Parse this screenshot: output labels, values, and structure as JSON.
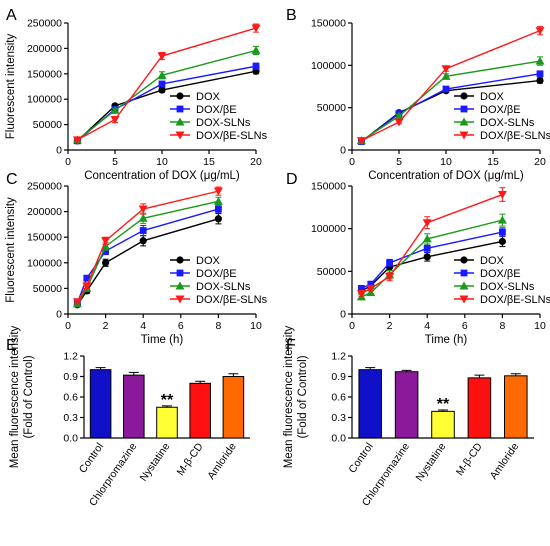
{
  "series_styles": [
    {
      "color": "#000000",
      "marker": "circle"
    },
    {
      "color": "#1a1aff",
      "marker": "square"
    },
    {
      "color": "#1a9a1a",
      "marker": "triangle-up"
    },
    {
      "color": "#ff1a1a",
      "marker": "triangle-down"
    }
  ],
  "chart_data": [
    {
      "panel": "A",
      "type": "line",
      "xlabel": "Concentration of DOX (μg/mL)",
      "ylabel": "Fluorescent intensity",
      "xlim": [
        0,
        20
      ],
      "xticks": [
        0,
        5,
        10,
        15,
        20
      ],
      "ylim": [
        0,
        250000
      ],
      "yticks": [
        0,
        50000,
        100000,
        150000,
        200000,
        250000
      ],
      "x": [
        1,
        5,
        10,
        20
      ],
      "legend_position": "bottom-right",
      "series": [
        {
          "name": "DOX",
          "values": [
            18000,
            87000,
            118000,
            155000
          ],
          "errors": [
            2000,
            3000,
            4000,
            5000
          ]
        },
        {
          "name": "DOX/βE",
          "values": [
            18000,
            80000,
            130000,
            165000
          ],
          "errors": [
            2000,
            3000,
            5000,
            6000
          ]
        },
        {
          "name": "DOX-SLNs",
          "values": [
            20000,
            78000,
            147000,
            196000
          ],
          "errors": [
            2000,
            4000,
            7000,
            8000
          ]
        },
        {
          "name": "DOX/βE-SLNs",
          "values": [
            20000,
            60000,
            185000,
            240000
          ],
          "errors": [
            2000,
            6000,
            7000,
            8000
          ]
        }
      ]
    },
    {
      "panel": "B",
      "type": "line",
      "xlabel": "Concentration of DOX (μg/mL)",
      "ylabel": "",
      "xlim": [
        0,
        20
      ],
      "xticks": [
        0,
        5,
        10,
        15,
        20
      ],
      "ylim": [
        0,
        150000
      ],
      "yticks": [
        0,
        50000,
        100000,
        150000
      ],
      "x": [
        1,
        5,
        10,
        20
      ],
      "legend_position": "bottom-right",
      "series": [
        {
          "name": "DOX",
          "values": [
            10000,
            44000,
            70000,
            82000
          ],
          "errors": [
            1000,
            2000,
            2000,
            3000
          ]
        },
        {
          "name": "DOX/βE",
          "values": [
            10000,
            43000,
            72000,
            90000
          ],
          "errors": [
            1000,
            2000,
            2000,
            3000
          ]
        },
        {
          "name": "DOX-SLNs",
          "values": [
            11000,
            40000,
            87000,
            105000
          ],
          "errors": [
            1000,
            2000,
            3000,
            5000
          ]
        },
        {
          "name": "DOX/βE-SLNs",
          "values": [
            11000,
            33000,
            96000,
            141000
          ],
          "errors": [
            1000,
            2000,
            3000,
            5000
          ]
        }
      ]
    },
    {
      "panel": "C",
      "type": "line",
      "xlabel": "Time (h)",
      "ylabel": "Fluorescent intensity",
      "xlim": [
        0,
        10
      ],
      "xticks": [
        0,
        2,
        4,
        6,
        8,
        10
      ],
      "ylim": [
        0,
        250000
      ],
      "yticks": [
        0,
        50000,
        100000,
        150000,
        200000,
        250000
      ],
      "x": [
        0.5,
        1,
        2,
        4,
        8
      ],
      "legend_position": "bottom-right",
      "series": [
        {
          "name": "DOX",
          "values": [
            18000,
            45000,
            100000,
            143000,
            186000
          ],
          "errors": [
            3000,
            5000,
            7000,
            10000,
            10000
          ]
        },
        {
          "name": "DOX/βE",
          "values": [
            22000,
            70000,
            123000,
            163000,
            205000
          ],
          "errors": [
            3000,
            5000,
            7000,
            10000,
            8000
          ]
        },
        {
          "name": "DOX-SLNs",
          "values": [
            20000,
            50000,
            132000,
            187000,
            220000
          ],
          "errors": [
            3000,
            5000,
            7000,
            10000,
            8000
          ]
        },
        {
          "name": "DOX/βE-SLNs",
          "values": [
            24000,
            55000,
            143000,
            205000,
            240000
          ],
          "errors": [
            3000,
            5000,
            7000,
            10000,
            8000
          ]
        }
      ]
    },
    {
      "panel": "D",
      "type": "line",
      "xlabel": "Time (h)",
      "ylabel": "",
      "xlim": [
        0,
        10
      ],
      "xticks": [
        0,
        2,
        4,
        6,
        8,
        10
      ],
      "ylim": [
        0,
        150000
      ],
      "yticks": [
        0,
        50000,
        100000,
        150000
      ],
      "x": [
        0.5,
        1,
        2,
        4,
        8
      ],
      "legend_position": "bottom-right",
      "series": [
        {
          "name": "DOX",
          "values": [
            27000,
            33000,
            55000,
            67000,
            85000
          ],
          "errors": [
            3000,
            3000,
            4000,
            5000,
            6000
          ]
        },
        {
          "name": "DOX/βE",
          "values": [
            30000,
            35000,
            60000,
            77000,
            96000
          ],
          "errors": [
            3000,
            3000,
            4000,
            5000,
            5000
          ]
        },
        {
          "name": "DOX-SLNs",
          "values": [
            20000,
            25000,
            46000,
            88000,
            110000
          ],
          "errors": [
            3000,
            3000,
            5000,
            6000,
            7000
          ]
        },
        {
          "name": "DOX/βE-SLNs",
          "values": [
            24000,
            30000,
            44000,
            107000,
            140000
          ],
          "errors": [
            3000,
            3000,
            5000,
            7000,
            8000
          ]
        }
      ]
    },
    {
      "panel": "E",
      "type": "bar",
      "ylabel": "Mean fluorescence intensity (Fold of Control)",
      "ylabel_lines": [
        "Mean fluorescence intensity",
        "(Fold of Control)"
      ],
      "ylim": [
        0,
        1.2
      ],
      "yticks": [
        0.0,
        0.3,
        0.6,
        0.9,
        1.2
      ],
      "ytick_labels": [
        "0.0",
        "0.3",
        "0.6",
        "0.9",
        "1.2"
      ],
      "categories": [
        "Control",
        "Chlorpromazine",
        "Nystatine",
        "M-β-CD",
        "Amloride"
      ],
      "values": [
        1.0,
        0.92,
        0.45,
        0.8,
        0.9
      ],
      "errors": [
        0.03,
        0.04,
        0.02,
        0.03,
        0.04
      ],
      "colors": [
        "#1010c8",
        "#8a1a9a",
        "#ffff33",
        "#ff1010",
        "#ff6a00"
      ],
      "annotations": [
        {
          "category": "Nystatine",
          "text": "**"
        }
      ]
    },
    {
      "panel": "F",
      "type": "bar",
      "ylabel": "Mean fluorescence intensity (Fold of Control)",
      "ylabel_lines": [
        "Mean fluorescence intensity",
        "(Fold of Control)"
      ],
      "ylim": [
        0,
        1.2
      ],
      "yticks": [
        0.0,
        0.3,
        0.6,
        0.9,
        1.2
      ],
      "ytick_labels": [
        "0.0",
        "0.3",
        "0.6",
        "0.9",
        "1.2"
      ],
      "categories": [
        "Control",
        "Chlorpromazine",
        "Nystatine",
        "M-β-CD",
        "Amloride"
      ],
      "values": [
        1.0,
        0.97,
        0.39,
        0.88,
        0.91
      ],
      "errors": [
        0.03,
        0.02,
        0.02,
        0.04,
        0.03
      ],
      "colors": [
        "#1010c8",
        "#8a1a9a",
        "#ffff33",
        "#ff1010",
        "#ff6a00"
      ],
      "annotations": [
        {
          "category": "Nystatine",
          "text": "**"
        }
      ]
    }
  ]
}
